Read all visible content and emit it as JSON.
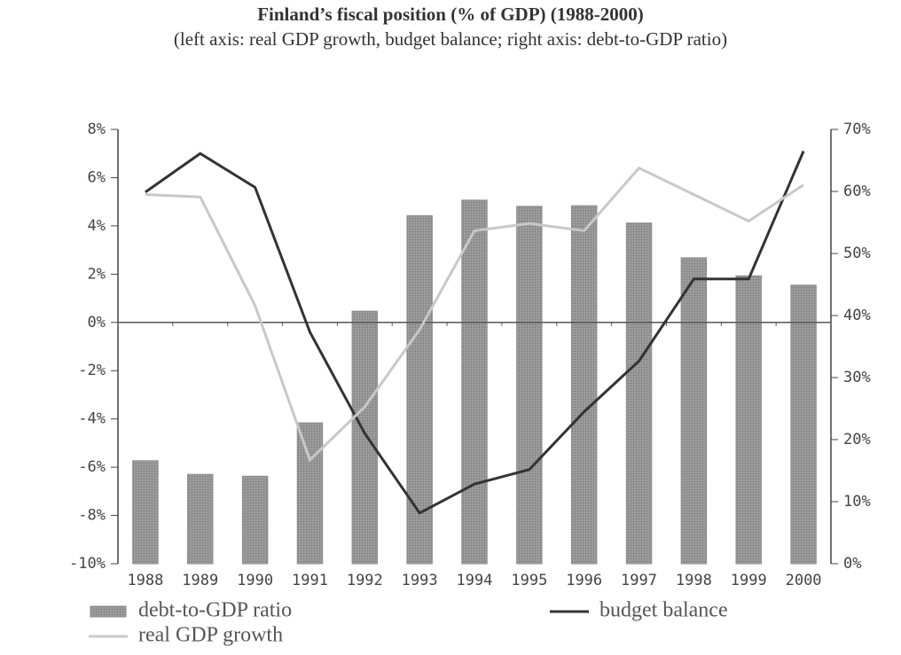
{
  "chart_data": {
    "type": "bar-line",
    "title": "Finland’s fiscal position (% of GDP) (1988-2000)",
    "subtitle": "(left axis: real GDP growth, budget balance; right axis: debt-to-GDP ratio)",
    "categories": [
      "1988",
      "1989",
      "1990",
      "1991",
      "1992",
      "1993",
      "1994",
      "1995",
      "1996",
      "1997",
      "1998",
      "1999",
      "2000"
    ],
    "series": [
      {
        "name": "debt-to-GDP ratio",
        "color": "#8c8c8c",
        "axis": "y2",
        "kind": "bar",
        "values": [
          16.6,
          14.4,
          14.1,
          22.7,
          40.7,
          56.1,
          58.6,
          57.6,
          57.7,
          54.9,
          49.3,
          46.4,
          44.9
        ]
      },
      {
        "name": "budget balance",
        "color": "#333333",
        "axis": "y",
        "kind": "line",
        "values": [
          5.4,
          7.0,
          5.6,
          -0.4,
          -4.6,
          -7.9,
          -6.7,
          -6.1,
          -3.7,
          -1.6,
          1.8,
          1.8,
          7.1
        ]
      },
      {
        "name": "real GDP growth",
        "color": "#c8c8c8",
        "axis": "y",
        "kind": "line",
        "values": [
          5.3,
          5.2,
          0.7,
          -5.7,
          -3.5,
          -0.3,
          3.8,
          4.1,
          3.8,
          6.4,
          5.3,
          4.2,
          5.7
        ]
      }
    ],
    "ylim": [
      -10,
      8
    ],
    "yticks": [
      {
        "value": -10,
        "label": "-10%"
      },
      {
        "value": -8,
        "label": "-8%"
      },
      {
        "value": -6,
        "label": "-6%"
      },
      {
        "value": -4,
        "label": "-4%"
      },
      {
        "value": -2,
        "label": "-2%"
      },
      {
        "value": 0,
        "label": "0%"
      },
      {
        "value": 2,
        "label": "2%"
      },
      {
        "value": 4,
        "label": "4%"
      },
      {
        "value": 6,
        "label": "6%"
      },
      {
        "value": 8,
        "label": "8%"
      }
    ],
    "y2lim": [
      0,
      70
    ],
    "y2ticks": [
      {
        "value": 0,
        "label": "0%"
      },
      {
        "value": 10,
        "label": "10%"
      },
      {
        "value": 20,
        "label": "20%"
      },
      {
        "value": 30,
        "label": "30%"
      },
      {
        "value": 40,
        "label": "40%"
      },
      {
        "value": 50,
        "label": "50%"
      },
      {
        "value": 60,
        "label": "60%"
      },
      {
        "value": 70,
        "label": "70%"
      }
    ]
  }
}
